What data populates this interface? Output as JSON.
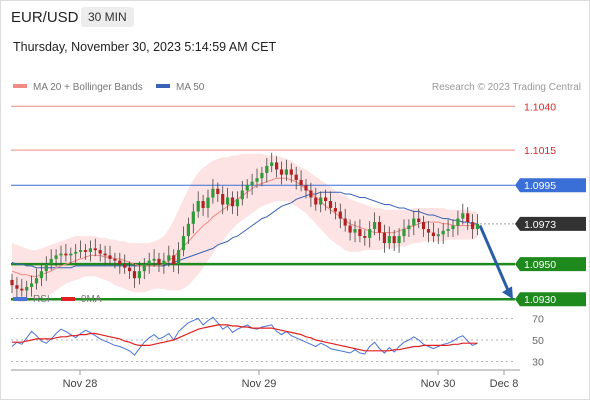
{
  "header": {
    "symbol": "EUR/USD",
    "interval": "30 MIN",
    "datetime": "Thursday, November 30, 2023 5:14:59 AM CET"
  },
  "colors": {
    "ma20": "#f08a84",
    "bollinger_fill": "#fde3e3",
    "ma50": "#3a62b6",
    "resistance": "#f08a84",
    "pivot": "#3a6fd8",
    "support": "#1e8a1e",
    "support_label_bg": "#1e8a1e",
    "current_label_bg": "#333333",
    "pivot_label_bg": "#3a6fd8",
    "candle_up": "#2e9a3a",
    "candle_down": "#b22222",
    "forecast_arrow": "#2a5fa8",
    "rsi": "#4a74d8",
    "rsi_ma": "#e02020"
  },
  "chart_data": [
    {
      "type": "candlestick",
      "title": "EUR/USD 30 MIN",
      "legend": [
        {
          "name": "MA 20 + Bollinger Bands",
          "color": "#f08a84"
        },
        {
          "name": "MA 50",
          "color": "#3a62b6"
        }
      ],
      "credit": "Research © 2023 Trading Central",
      "ylim": [
        1.0925,
        1.1055
      ],
      "levels": [
        {
          "value": 1.104,
          "label": "1.1040",
          "kind": "resistance"
        },
        {
          "value": 1.1015,
          "label": "1.1015",
          "kind": "resistance"
        },
        {
          "value": 1.0995,
          "label": "1.0995",
          "kind": "pivot"
        },
        {
          "value": 1.095,
          "label": "1.0950",
          "kind": "support"
        },
        {
          "value": 1.093,
          "label": "1.0930",
          "kind": "support"
        }
      ],
      "current_price": {
        "value": 1.0973,
        "label": "1.0973"
      },
      "forecast_arrow": {
        "from": 1.0972,
        "to": 1.093
      },
      "x_ticks": [
        "Nov 28",
        "Nov 29",
        "Nov 30",
        "Dec 8"
      ],
      "close": [
        1.0938,
        1.0936,
        1.0935,
        1.0937,
        1.0939,
        1.0942,
        1.0946,
        1.095,
        1.0953,
        1.0955,
        1.0956,
        1.0955,
        1.0956,
        1.0957,
        1.0958,
        1.0957,
        1.0959,
        1.0958,
        1.0956,
        1.0955,
        1.0953,
        1.0952,
        1.095,
        1.0948,
        1.0946,
        1.0942,
        1.0946,
        1.095,
        1.0952,
        1.0953,
        1.095,
        1.0952,
        1.0955,
        1.095,
        1.0958,
        1.0966,
        1.0973,
        1.098,
        1.0986,
        1.0982,
        1.0988,
        1.0993,
        1.099,
        1.0984,
        1.0988,
        1.0983,
        1.0987,
        1.0992,
        1.0995,
        1.0997,
        1.0999,
        1.1002,
        1.1006,
        1.1008,
        1.1004,
        1.1001,
        1.1004,
        1.1001,
        1.0998,
        1.0995,
        1.0992,
        1.0988,
        1.0984,
        1.0988,
        1.0986,
        1.0982,
        1.098,
        1.0976,
        1.0972,
        1.0968,
        1.097,
        1.0966,
        1.0965,
        1.097,
        1.0974,
        1.0968,
        1.0962,
        1.0966,
        1.0962,
        1.0966,
        1.097,
        1.0972,
        1.0976,
        1.0974,
        1.097,
        1.0968,
        1.0966,
        1.0967,
        1.0969,
        1.097,
        1.0972,
        1.0976,
        1.0979,
        1.0974,
        1.097,
        1.0973
      ],
      "ma20": [
        1.0946,
        1.0945,
        1.0944,
        1.0944,
        1.0943,
        1.0943,
        1.0944,
        1.0945,
        1.0946,
        1.0948,
        1.0949,
        1.095,
        1.0951,
        1.0952,
        1.0953,
        1.0954,
        1.0955,
        1.0955,
        1.0955,
        1.0954,
        1.0954,
        1.0953,
        1.0953,
        1.0952,
        1.0951,
        1.095,
        1.0949,
        1.0949,
        1.0949,
        1.0949,
        1.0949,
        1.095,
        1.0952,
        1.0954,
        1.0957,
        1.096,
        1.0963,
        1.0966,
        1.0969,
        1.0972,
        1.0974,
        1.0977,
        1.0979,
        1.0981,
        1.0983,
        1.0985,
        1.0987,
        1.0989,
        1.0991,
        1.0993,
        1.0995,
        1.0996,
        1.0997,
        1.0998,
        1.0999,
        1.0999,
        1.0999,
        1.0998,
        1.0997,
        1.0995,
        1.0993,
        1.0991,
        1.0988,
        1.0986,
        1.0983,
        1.0981,
        1.0979,
        1.0977,
        1.0975,
        1.0973,
        1.0972,
        1.0971,
        1.097,
        1.0969,
        1.0968,
        1.0968,
        1.0968,
        1.0968,
        1.0968,
        1.0969,
        1.097,
        1.0971,
        1.0972,
        1.0973,
        1.0974,
        1.0974,
        1.0974,
        1.0974,
        1.0973,
        1.0973,
        1.0972,
        1.0972,
        1.0972,
        1.0972,
        1.0972,
        1.0973
      ],
      "bb_upper": [
        1.0962,
        1.0961,
        1.096,
        1.0959,
        1.0958,
        1.0958,
        1.0959,
        1.096,
        1.0961,
        1.0962,
        1.0963,
        1.0964,
        1.0965,
        1.0966,
        1.0966,
        1.0966,
        1.0966,
        1.0966,
        1.0965,
        1.0965,
        1.0964,
        1.0964,
        1.0963,
        1.0963,
        1.0962,
        1.0962,
        1.0962,
        1.0962,
        1.0962,
        1.0963,
        1.0964,
        1.0966,
        1.097,
        1.0975,
        1.0981,
        1.0987,
        1.0993,
        1.0998,
        1.1002,
        1.1005,
        1.1007,
        1.1009,
        1.101,
        1.1011,
        1.1011,
        1.1012,
        1.1012,
        1.1013,
        1.1013,
        1.1013,
        1.1013,
        1.1013,
        1.1012,
        1.1012,
        1.1012,
        1.1011,
        1.101,
        1.1009,
        1.1007,
        1.1005,
        1.1004,
        1.1002,
        1.1,
        1.0998,
        1.0996,
        1.0994,
        1.0992,
        1.099,
        1.0989,
        1.0987,
        1.0986,
        1.0985,
        1.0984,
        1.0983,
        1.0982,
        1.0982,
        1.0981,
        1.0981,
        1.0981,
        1.0981,
        1.0981,
        1.0981,
        1.0982,
        1.0982,
        1.0982,
        1.0982,
        1.0982,
        1.0982,
        1.0982,
        1.0981,
        1.0981,
        1.0981,
        1.0981,
        1.0981,
        1.098,
        1.098
      ],
      "bb_lower": [
        1.093,
        1.0929,
        1.0928,
        1.0929,
        1.0929,
        1.093,
        1.0931,
        1.0932,
        1.0933,
        1.0935,
        1.0937,
        1.0939,
        1.094,
        1.0941,
        1.0942,
        1.0943,
        1.0943,
        1.0943,
        1.0942,
        1.0941,
        1.094,
        1.0938,
        1.0937,
        1.0936,
        1.0935,
        1.0934,
        1.0934,
        1.0934,
        1.0935,
        1.0936,
        1.0936,
        1.0936,
        1.0935,
        1.0935,
        1.0935,
        1.0936,
        1.0938,
        1.0941,
        1.0944,
        1.0948,
        1.0952,
        1.0956,
        1.096,
        1.0963,
        1.0967,
        1.097,
        1.0973,
        1.0975,
        1.0977,
        1.0979,
        1.0981,
        1.0983,
        1.0984,
        1.0985,
        1.0986,
        1.0986,
        1.0986,
        1.0985,
        1.0983,
        1.0981,
        1.0979,
        1.0976,
        1.0973,
        1.097,
        1.0967,
        1.0964,
        1.0962,
        1.096,
        1.0958,
        1.0957,
        1.0957,
        1.0957,
        1.0958,
        1.0958,
        1.0958,
        1.0958,
        1.0959,
        1.0959,
        1.0959,
        1.096,
        1.096,
        1.0961,
        1.0962,
        1.0962,
        1.0963,
        1.0963,
        1.0963,
        1.0963,
        1.0963,
        1.0964,
        1.0964,
        1.0964,
        1.0964,
        1.0964,
        1.0964,
        1.0965
      ],
      "ma50": [
        1.0951,
        1.095,
        1.095,
        1.0949,
        1.0949,
        1.0948,
        1.0948,
        1.0948,
        1.0948,
        1.0948,
        1.0948,
        1.0948,
        1.0948,
        1.0949,
        1.0949,
        1.0949,
        1.0949,
        1.0949,
        1.0949,
        1.0949,
        1.0949,
        1.0949,
        1.0949,
        1.0949,
        1.0949,
        1.0949,
        1.0949,
        1.0949,
        1.0949,
        1.0949,
        1.0949,
        1.0949,
        1.095,
        1.0951,
        1.0952,
        1.0953,
        1.0954,
        1.0955,
        1.0956,
        1.0957,
        1.0958,
        1.0959,
        1.0961,
        1.0962,
        1.0963,
        1.0965,
        1.0966,
        1.0968,
        1.097,
        1.0972,
        1.0974,
        1.0976,
        1.0977,
        1.0979,
        1.0981,
        1.0983,
        1.0984,
        1.0985,
        1.0987,
        1.0988,
        1.0989,
        1.099,
        1.099,
        1.0991,
        1.0991,
        1.0991,
        1.0991,
        1.0991,
        1.099,
        1.099,
        1.0989,
        1.0988,
        1.0988,
        1.0987,
        1.0986,
        1.0985,
        1.0984,
        1.0984,
        1.0983,
        1.0982,
        1.0982,
        1.0981,
        1.098,
        1.098,
        1.0979,
        1.0978,
        1.0978,
        1.0977,
        1.0976,
        1.0976,
        1.0975,
        1.0975,
        1.0974,
        1.0974,
        1.0973,
        1.0973
      ]
    },
    {
      "type": "line",
      "title": "",
      "legend": [
        {
          "name": "RSI",
          "color": "#4a74d8"
        },
        {
          "name": "9MA",
          "color": "#e02020"
        }
      ],
      "ylim": [
        25,
        75
      ],
      "y_ticks": [
        70,
        50,
        30
      ],
      "series": [
        {
          "name": "RSI",
          "values": [
            44,
            48,
            46,
            52,
            58,
            54,
            49,
            47,
            51,
            56,
            60,
            58,
            55,
            52,
            56,
            59,
            57,
            54,
            51,
            49,
            47,
            45,
            44,
            42,
            40,
            36,
            42,
            48,
            52,
            55,
            51,
            53,
            56,
            50,
            58,
            62,
            66,
            68,
            70,
            64,
            68,
            71,
            66,
            60,
            63,
            57,
            60,
            62,
            64,
            61,
            60,
            62,
            63,
            64,
            58,
            55,
            58,
            54,
            52,
            50,
            48,
            46,
            44,
            47,
            45,
            42,
            41,
            40,
            39,
            38,
            41,
            38,
            37,
            44,
            48,
            42,
            38,
            43,
            39,
            44,
            48,
            50,
            53,
            50,
            46,
            44,
            42,
            44,
            46,
            47,
            49,
            52,
            54,
            49,
            45,
            47
          ]
        },
        {
          "name": "9MA",
          "values": [
            48,
            48,
            48,
            49,
            50,
            51,
            51,
            51,
            51,
            52,
            53,
            53,
            54,
            54,
            55,
            55,
            56,
            56,
            55,
            54,
            53,
            52,
            51,
            49,
            48,
            46,
            45,
            45,
            45,
            46,
            47,
            48,
            49,
            50,
            52,
            54,
            56,
            58,
            60,
            61,
            62,
            63,
            64,
            64,
            64,
            63,
            63,
            62,
            62,
            61,
            61,
            61,
            61,
            61,
            60,
            59,
            58,
            57,
            56,
            55,
            53,
            52,
            50,
            49,
            48,
            47,
            46,
            45,
            44,
            43,
            42,
            41,
            40,
            40,
            40,
            40,
            40,
            40,
            41,
            41,
            42,
            43,
            44,
            44,
            45,
            45,
            45,
            45,
            45,
            45,
            46,
            46,
            47,
            47,
            47,
            47
          ]
        }
      ]
    }
  ]
}
